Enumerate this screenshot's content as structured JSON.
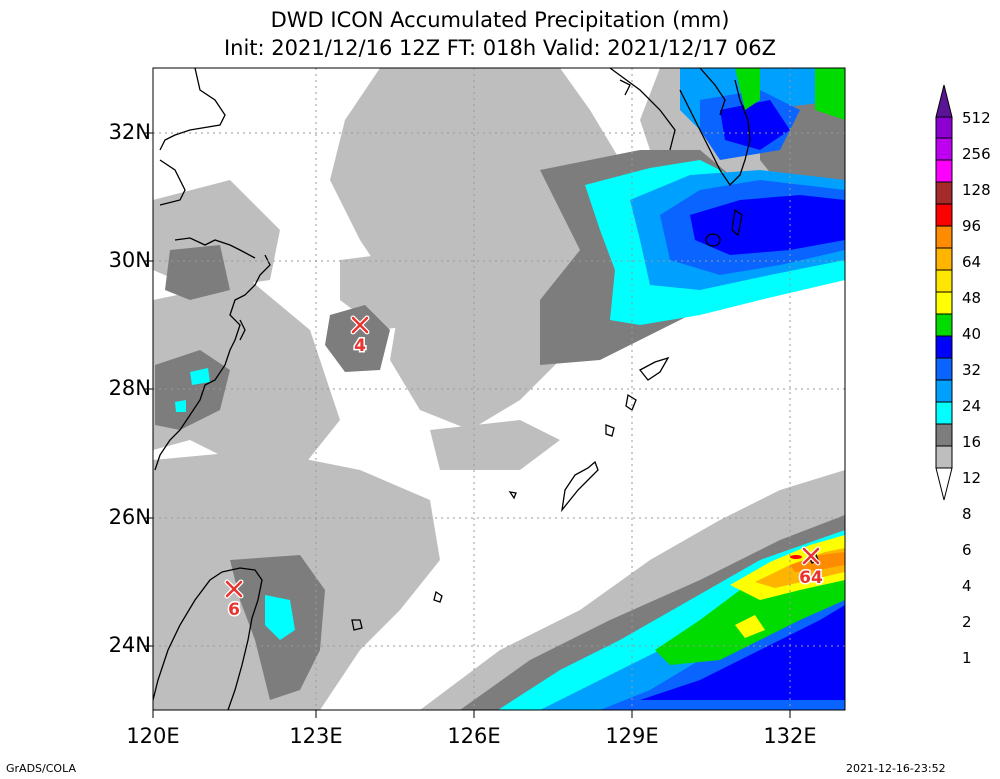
{
  "title": {
    "line1": "DWD ICON Accumulated Precipitation (mm)",
    "line2": "Init: 2021/12/16 12Z  FT: 018h  Valid: 2021/12/17 06Z"
  },
  "x_ticks": [
    "120E",
    "123E",
    "126E",
    "129E",
    "132E"
  ],
  "y_ticks": [
    "32N",
    "30N",
    "28N",
    "26N",
    "24N"
  ],
  "markers": [
    {
      "value": "4"
    },
    {
      "value": "6"
    },
    {
      "value": "64"
    }
  ],
  "colorbar": {
    "labels": [
      "512",
      "256",
      "128",
      "96",
      "64",
      "48",
      "40",
      "32",
      "24",
      "16",
      "12",
      "8",
      "6",
      "4",
      "2",
      "1"
    ],
    "colors": [
      "#5a1496",
      "#8c00d2",
      "#be00f0",
      "#ff00ff",
      "#a52a2a",
      "#ff0000",
      "#ff8c00",
      "#ffb400",
      "#ffe600",
      "#ffff00",
      "#00dc00",
      "#0000ff",
      "#0a64ff",
      "#00a0ff",
      "#00ffff",
      "#7d7d7d",
      "#bebebe",
      "#ffffff"
    ]
  },
  "footer": {
    "left": "GrADS/COLA",
    "right": "2021-12-16-23:52"
  }
}
